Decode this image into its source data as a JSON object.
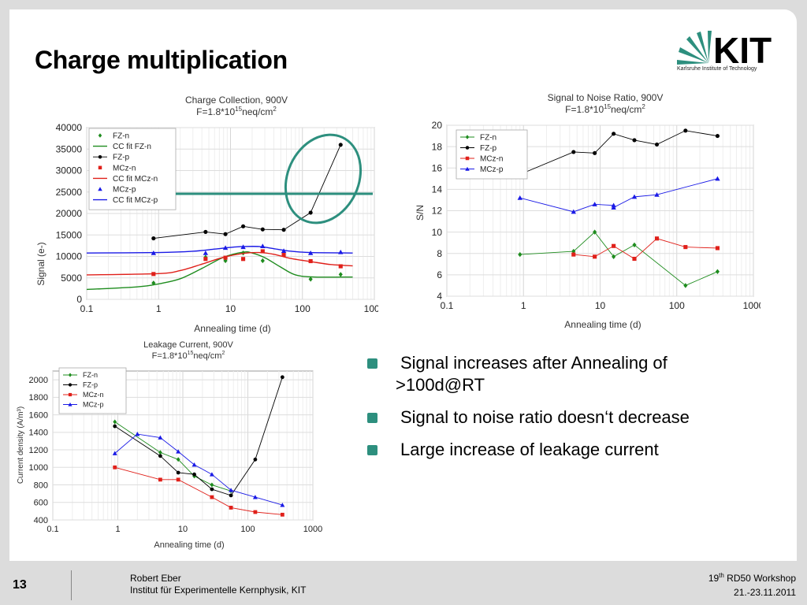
{
  "slide": {
    "title": "Charge multiplication",
    "logo_text": "KIT",
    "logo_subtitle": "Karlsruhe Institute of Technology",
    "page_number": "13",
    "author": "Robert Eber",
    "institute": "Institut für Experimentelle Kernphysik, KIT",
    "event_prefix": "19",
    "event_sup": "th",
    "event_suffix": " RD50 Workshop",
    "event_date": "21.-23.11.2011",
    "bullets": [
      "Signal increases after Annealing of",
      ">100d@RT",
      "Signal to noise ratio doesn‘t decrease",
      "Large increase of leakage current"
    ],
    "colors": {
      "accent": "#2d8f7e",
      "fz_n": "#1e8c1e",
      "fz_p": "#000000",
      "mcz_n": "#e0201a",
      "mcz_p": "#1a1ae6"
    }
  },
  "chart_data": [
    {
      "type": "line",
      "title_line1": "Charge Collection, 900V",
      "title_line2_pre": "F=1.8*10",
      "title_line2_sup": "15",
      "title_line2_post": "neq/cm",
      "title_line2_sup2": "2",
      "xlabel": "Annealing time (d)",
      "ylabel": "Signal (e-)",
      "xscale": "log",
      "xlim": [
        0.1,
        1000
      ],
      "ylim": [
        0,
        40000
      ],
      "xticks": [
        "0.1",
        "1",
        "10",
        "100",
        "1000"
      ],
      "yticks": [
        "0",
        "5000",
        "10000",
        "15000",
        "20000",
        "25000",
        "30000",
        "35000",
        "40000"
      ],
      "legend": [
        "FZ-n",
        "CC fit FZ-n",
        "FZ-p",
        "MCz-n",
        "CC fit MCz-n",
        "MCz-p",
        "CC fit MCz-p"
      ],
      "series": [
        {
          "name": "FZ-n",
          "kind": "points",
          "marker": "diamond",
          "color": "#1e8c1e",
          "x": [
            0.85,
            4.5,
            8.5,
            15,
            28,
            130,
            340
          ],
          "y": [
            3800,
            9800,
            9000,
            10800,
            9000,
            4700,
            5800
          ]
        },
        {
          "name": "CC fit FZ-n",
          "kind": "line",
          "color": "#1e8c1e",
          "x": [
            0.1,
            0.5,
            1,
            2,
            4,
            8,
            15,
            20,
            30,
            50,
            80,
            150,
            500
          ],
          "y": [
            2300,
            2900,
            3600,
            4800,
            7200,
            9800,
            11000,
            10800,
            9700,
            7500,
            5700,
            5200,
            5200
          ]
        },
        {
          "name": "FZ-p",
          "kind": "linepoints",
          "marker": "circle",
          "color": "#000000",
          "x": [
            0.85,
            4.5,
            8.5,
            15,
            28,
            55,
            130,
            340
          ],
          "y": [
            14200,
            15700,
            15200,
            17000,
            16300,
            16200,
            20200,
            36000
          ]
        },
        {
          "name": "MCz-n",
          "kind": "points",
          "marker": "square",
          "color": "#e0201a",
          "x": [
            0.85,
            4.5,
            8.5,
            15,
            28,
            55,
            130,
            340
          ],
          "y": [
            5900,
            9400,
            9700,
            9400,
            11200,
            10400,
            8900,
            7700
          ]
        },
        {
          "name": "CC fit MCz-n",
          "kind": "line",
          "color": "#e0201a",
          "x": [
            0.1,
            1,
            2,
            4,
            8,
            15,
            25,
            40,
            70,
            130,
            250,
            500
          ],
          "y": [
            5700,
            6000,
            6700,
            8200,
            9800,
            10700,
            10900,
            10500,
            9500,
            8800,
            8100,
            7800
          ]
        },
        {
          "name": "MCz-p",
          "kind": "points",
          "marker": "triangle",
          "color": "#1a1ae6",
          "x": [
            0.85,
            4.5,
            8.5,
            15,
            28,
            55,
            130,
            340
          ],
          "y": [
            10800,
            10800,
            12000,
            12200,
            12400,
            11300,
            10800,
            11000
          ]
        },
        {
          "name": "CC fit MCz-p",
          "kind": "line",
          "color": "#1a1ae6",
          "x": [
            0.1,
            1,
            3,
            6,
            10,
            15,
            25,
            40,
            70,
            130,
            500
          ],
          "y": [
            10800,
            10900,
            11200,
            11700,
            12100,
            12300,
            12300,
            11800,
            11200,
            10900,
            10800
          ]
        }
      ]
    },
    {
      "type": "line",
      "title_line1": "Signal to Noise Ratio, 900V",
      "title_line2_pre": "F=1.8*10",
      "title_line2_sup": "15",
      "title_line2_post": "neq/cm",
      "title_line2_sup2": "2",
      "xlabel": "Annealing time (d)",
      "ylabel": "S/N",
      "xscale": "log",
      "xlim": [
        0.1,
        1000
      ],
      "ylim": [
        4,
        20
      ],
      "xticks": [
        "0.1",
        "1",
        "10",
        "100",
        "1000"
      ],
      "yticks": [
        "4",
        "6",
        "8",
        "10",
        "12",
        "14",
        "16",
        "18",
        "20"
      ],
      "legend": [
        "FZ-n",
        "FZ-p",
        "MCz-n",
        "MCz-p"
      ],
      "series": [
        {
          "name": "FZ-n",
          "kind": "linepoints",
          "marker": "diamond",
          "color": "#1e8c1e",
          "x": [
            0.9,
            4.5,
            8.5,
            15,
            28,
            130,
            340
          ],
          "y": [
            7.9,
            8.2,
            10.0,
            7.7,
            8.8,
            5.0,
            6.3
          ]
        },
        {
          "name": "FZ-p",
          "kind": "linepoints",
          "marker": "circle",
          "color": "#000000",
          "x": [
            0.9,
            4.5,
            8.5,
            15,
            28,
            55,
            130,
            340
          ],
          "y": [
            15.4,
            17.5,
            17.4,
            19.2,
            18.6,
            18.2,
            19.5,
            19.0
          ]
        },
        {
          "name": "MCz-n",
          "kind": "linepoints",
          "marker": "square",
          "color": "#e0201a",
          "x": [
            4.5,
            8.5,
            15,
            28,
            55,
            130,
            340
          ],
          "y": [
            7.9,
            7.7,
            8.7,
            7.5,
            9.4,
            8.6,
            8.5
          ]
        },
        {
          "name": "MCz-p",
          "kind": "linepoints",
          "marker": "triangle",
          "color": "#1a1ae6",
          "x": [
            0.9,
            4.5,
            8.5,
            15,
            15,
            28,
            55,
            340
          ],
          "y": [
            13.2,
            11.9,
            12.6,
            12.5,
            12.3,
            13.3,
            13.5,
            15.0
          ]
        }
      ]
    },
    {
      "type": "line",
      "title_line1": "Leakage Current, 900V",
      "title_line2_pre": "F=1.8*10",
      "title_line2_sup": "15",
      "title_line2_post": "neq/cm",
      "title_line2_sup2": "2",
      "xlabel": "Annealing time (d)",
      "ylabel": "Current density (A/m³)",
      "xscale": "log",
      "xlim": [
        0.1,
        1000
      ],
      "ylim": [
        400,
        2100
      ],
      "xticks": [
        "0.1",
        "1",
        "10",
        "100",
        "1000"
      ],
      "yticks": [
        "400",
        "600",
        "800",
        "1000",
        "1200",
        "1400",
        "1600",
        "1800",
        "2000"
      ],
      "legend": [
        "FZ-n",
        "FZ-p",
        "MCz-n",
        "MCz-p"
      ],
      "series": [
        {
          "name": "FZ-n",
          "kind": "linepoints",
          "marker": "diamond",
          "color": "#1e8c1e",
          "x": [
            0.9,
            4.5,
            8.5,
            15,
            28,
            55
          ],
          "y": [
            1520,
            1170,
            1090,
            900,
            800,
            730
          ]
        },
        {
          "name": "FZ-p",
          "kind": "linepoints",
          "marker": "circle",
          "color": "#000000",
          "x": [
            0.9,
            4.5,
            8.5,
            15,
            28,
            55,
            130,
            340
          ],
          "y": [
            1470,
            1130,
            940,
            920,
            750,
            680,
            1090,
            2030
          ]
        },
        {
          "name": "MCz-n",
          "kind": "linepoints",
          "marker": "square",
          "color": "#e0201a",
          "x": [
            0.9,
            4.5,
            8.5,
            28,
            55,
            130,
            340
          ],
          "y": [
            1000,
            860,
            860,
            660,
            540,
            490,
            460
          ]
        },
        {
          "name": "MCz-p",
          "kind": "linepoints",
          "marker": "triangle",
          "color": "#1a1ae6",
          "x": [
            0.9,
            2,
            4.5,
            8.5,
            15,
            28,
            55,
            130,
            340
          ],
          "y": [
            1160,
            1380,
            1340,
            1180,
            1030,
            920,
            740,
            660,
            570
          ]
        }
      ]
    }
  ]
}
